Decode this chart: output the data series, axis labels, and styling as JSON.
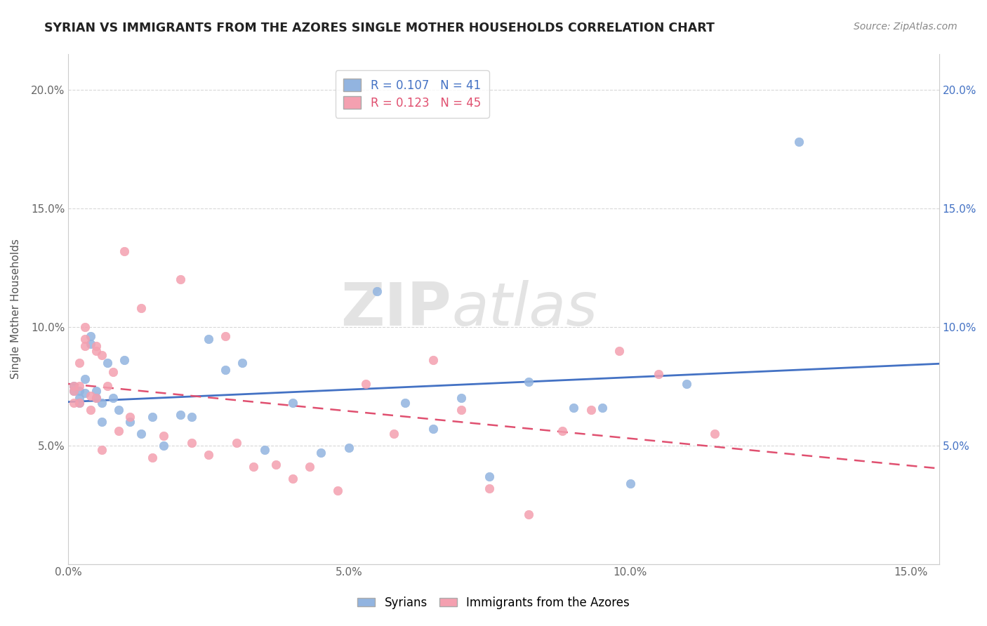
{
  "title": "SYRIAN VS IMMIGRANTS FROM THE AZORES SINGLE MOTHER HOUSEHOLDS CORRELATION CHART",
  "source": "Source: ZipAtlas.com",
  "ylabel": "Single Mother Households",
  "xlim": [
    0.0,
    0.155
  ],
  "ylim": [
    0.0,
    0.215
  ],
  "yticks": [
    0.05,
    0.1,
    0.15,
    0.2
  ],
  "ytick_labels": [
    "5.0%",
    "10.0%",
    "15.0%",
    "20.0%"
  ],
  "xticks": [
    0.0,
    0.05,
    0.1,
    0.15
  ],
  "xtick_labels": [
    "0.0%",
    "5.0%",
    "10.0%",
    "15.0%"
  ],
  "syrians_color": "#92b4e0",
  "azores_color": "#f4a0b0",
  "syrians_R": "0.107",
  "syrians_N": "41",
  "azores_R": "0.123",
  "azores_N": "45",
  "syrians_x": [
    0.001,
    0.001,
    0.002,
    0.002,
    0.002,
    0.003,
    0.003,
    0.004,
    0.004,
    0.005,
    0.005,
    0.006,
    0.006,
    0.007,
    0.008,
    0.009,
    0.01,
    0.011,
    0.013,
    0.015,
    0.017,
    0.02,
    0.022,
    0.025,
    0.028,
    0.031,
    0.035,
    0.04,
    0.045,
    0.05,
    0.055,
    0.06,
    0.065,
    0.07,
    0.075,
    0.082,
    0.09,
    0.095,
    0.1,
    0.11,
    0.13
  ],
  "syrians_y": [
    0.073,
    0.075,
    0.07,
    0.073,
    0.068,
    0.072,
    0.078,
    0.093,
    0.096,
    0.07,
    0.073,
    0.068,
    0.06,
    0.085,
    0.07,
    0.065,
    0.086,
    0.06,
    0.055,
    0.062,
    0.05,
    0.063,
    0.062,
    0.095,
    0.082,
    0.085,
    0.048,
    0.068,
    0.047,
    0.049,
    0.115,
    0.068,
    0.057,
    0.07,
    0.037,
    0.077,
    0.066,
    0.066,
    0.034,
    0.076,
    0.178
  ],
  "azores_x": [
    0.001,
    0.001,
    0.001,
    0.002,
    0.002,
    0.002,
    0.003,
    0.003,
    0.003,
    0.004,
    0.004,
    0.005,
    0.005,
    0.005,
    0.006,
    0.006,
    0.007,
    0.008,
    0.009,
    0.01,
    0.011,
    0.013,
    0.015,
    0.017,
    0.02,
    0.022,
    0.025,
    0.028,
    0.03,
    0.033,
    0.037,
    0.04,
    0.043,
    0.048,
    0.053,
    0.058,
    0.065,
    0.07,
    0.075,
    0.082,
    0.088,
    0.093,
    0.098,
    0.105,
    0.115
  ],
  "azores_y": [
    0.073,
    0.075,
    0.068,
    0.085,
    0.075,
    0.068,
    0.1,
    0.095,
    0.092,
    0.071,
    0.065,
    0.09,
    0.092,
    0.07,
    0.088,
    0.048,
    0.075,
    0.081,
    0.056,
    0.132,
    0.062,
    0.108,
    0.045,
    0.054,
    0.12,
    0.051,
    0.046,
    0.096,
    0.051,
    0.041,
    0.042,
    0.036,
    0.041,
    0.031,
    0.076,
    0.055,
    0.086,
    0.065,
    0.032,
    0.021,
    0.056,
    0.065,
    0.09,
    0.08,
    0.055
  ],
  "syrians_line_color": "#4472c4",
  "azores_line_color": "#e05070",
  "watermark_zip": "ZIP",
  "watermark_atlas": "atlas",
  "background_color": "#ffffff",
  "grid_color": "#d8d8d8"
}
